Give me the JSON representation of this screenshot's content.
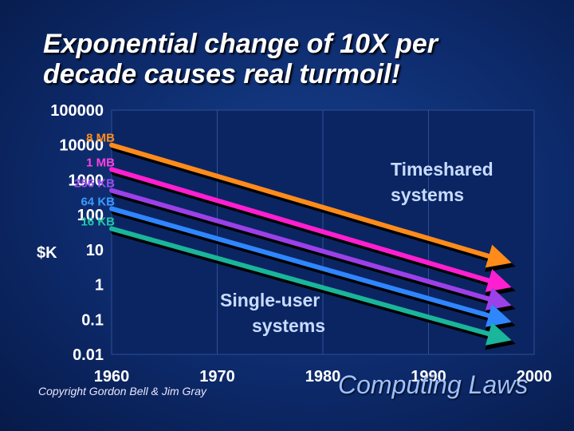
{
  "title_line1": "Exponential change of 10X per",
  "title_line2": "decade causes real turmoil!",
  "copyright": "Copyright Gordon Bell & Jim Gray",
  "footer": "Computing Laws",
  "colors": {
    "background": "#0d2a6b",
    "plot_background": "#0b2563",
    "grid": "#2c4f94"
  },
  "chart_data": {
    "type": "line",
    "title": "Exponential change of 10X per decade causes real turmoil!",
    "ylabel": "$K",
    "yscale": "log",
    "ylim": [
      0.01,
      100000
    ],
    "xlim": [
      1960,
      2000
    ],
    "xticks": [
      "1960",
      "1970",
      "1980",
      "1990",
      "2000"
    ],
    "yticks": [
      "100000",
      "10000",
      "1000",
      "100",
      "10",
      "1",
      "0.1",
      "0.01"
    ],
    "grid": true,
    "series": [
      {
        "name": "8 MB",
        "color": "#ff8c1a",
        "label_color": "#ff8c1a",
        "x": [
          1960,
          1997
        ],
        "y": [
          10000,
          5
        ]
      },
      {
        "name": "1 MB",
        "color": "#ff1fd0",
        "label_color": "#ff40e0",
        "x": [
          1960,
          1997
        ],
        "y": [
          2000,
          1
        ]
      },
      {
        "name": "256 KB",
        "color": "#9c40e8",
        "label_color": "#9c4df0",
        "x": [
          1960,
          1997
        ],
        "y": [
          500,
          0.3
        ]
      },
      {
        "name": "64 KB",
        "color": "#2f86ff",
        "label_color": "#3b9bff",
        "x": [
          1960,
          1997
        ],
        "y": [
          150,
          0.1
        ]
      },
      {
        "name": "16 KB",
        "color": "#1ab59a",
        "label_color": "#20c9a8",
        "x": [
          1960,
          1997
        ],
        "y": [
          40,
          0.03
        ]
      }
    ],
    "annotations": [
      {
        "text_line1": "Timeshared",
        "text_line2": "systems"
      },
      {
        "text_line1": "Single-user",
        "text_line2": "systems"
      }
    ]
  }
}
